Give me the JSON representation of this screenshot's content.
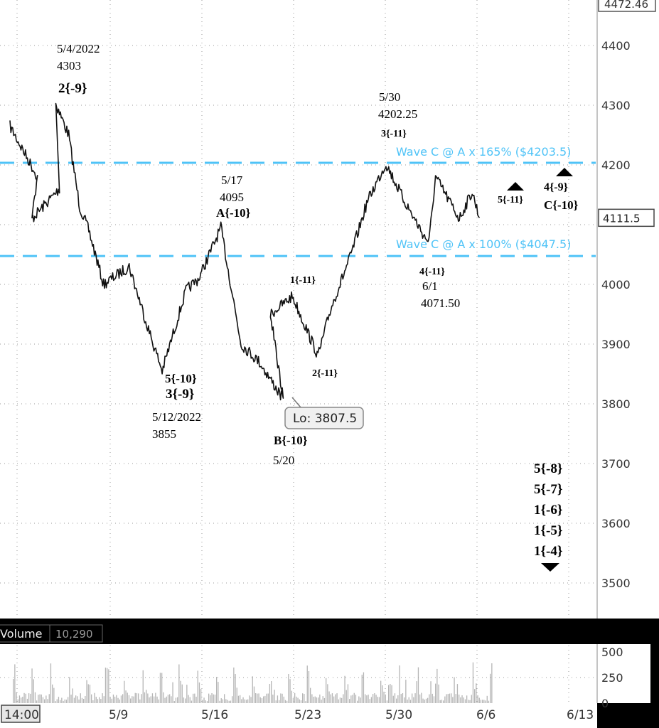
{
  "chart_data": {
    "type": "line",
    "title": "",
    "price_axis": {
      "ticks": [
        3500,
        3600,
        3700,
        3800,
        3900,
        4000,
        4100,
        4200,
        4300,
        4400
      ],
      "tick_labels": [
        "3500",
        "3600",
        "3700",
        "3800",
        "3900",
        "4000",
        "4100",
        "4200",
        "4300",
        "4400"
      ],
      "top_label": "4472.46",
      "last_price": 4111.5,
      "last_price_label": "4111.5",
      "ylim": [
        3450,
        4472.46
      ],
      "grid": "dotted"
    },
    "x_axis": {
      "tick_labels": [
        "14:00",
        "5/9",
        "5/16",
        "5/23",
        "5/30",
        "6/6",
        "6/13"
      ]
    },
    "horizontal_lines": [
      {
        "label": "Wave C @ A x 165% ($4203.5)",
        "value": 4203.5,
        "color": "#4fc3f7"
      },
      {
        "label": "Wave C @ A x 100% ($4047.5)",
        "value": 4047.5,
        "color": "#4fc3f7"
      }
    ],
    "price_series": {
      "name": "",
      "anchors": [
        {
          "x": "5/2",
          "y": 4265
        },
        {
          "x": "5/3",
          "y": 4180
        },
        {
          "x": "5/3",
          "y": 4110
        },
        {
          "x": "5/4",
          "y": 4160
        },
        {
          "x": "5/4",
          "y": 4303
        },
        {
          "x": "5/5",
          "y": 4250
        },
        {
          "x": "5/5",
          "y": 4130
        },
        {
          "x": "5/6",
          "y": 4090
        },
        {
          "x": "5/9",
          "y": 4000
        },
        {
          "x": "5/10",
          "y": 4030
        },
        {
          "x": "5/11",
          "y": 3920
        },
        {
          "x": "5/12",
          "y": 3855
        },
        {
          "x": "5/13",
          "y": 3990
        },
        {
          "x": "5/16",
          "y": 4010
        },
        {
          "x": "5/17",
          "y": 4095
        },
        {
          "x": "5/18",
          "y": 3900
        },
        {
          "x": "5/19",
          "y": 3870
        },
        {
          "x": "5/20",
          "y": 3807.5
        },
        {
          "x": "5/20",
          "y": 3950
        },
        {
          "x": "5/23",
          "y": 3980
        },
        {
          "x": "5/24",
          "y": 3880
        },
        {
          "x": "5/25",
          "y": 3960
        },
        {
          "x": "5/26",
          "y": 4050
        },
        {
          "x": "5/27",
          "y": 4140
        },
        {
          "x": "5/30",
          "y": 4202.25
        },
        {
          "x": "5/31",
          "y": 4140
        },
        {
          "x": "6/1",
          "y": 4080
        },
        {
          "x": "6/1",
          "y": 4071.5
        },
        {
          "x": "6/2",
          "y": 4180
        },
        {
          "x": "6/3",
          "y": 4110
        },
        {
          "x": "6/6",
          "y": 4155
        },
        {
          "x": "6/6",
          "y": 4111.5
        }
      ]
    },
    "annotations": [
      {
        "lines": [
          "5/4/2022",
          "4303"
        ],
        "wave": "2{-9}"
      },
      {
        "lines": [
          "5/12/2022",
          "3855"
        ],
        "wave": "5{-10}",
        "wave2": "3{-9}"
      },
      {
        "lines": [
          "5/17",
          "4095"
        ],
        "wave": "A{-10}"
      },
      {
        "lines": [
          "5/20"
        ],
        "wave": "B{-10}",
        "callout": "Lo: 3807.5"
      },
      {
        "lines": [
          "5/30",
          "4202.25"
        ],
        "wave": "3{-11}"
      },
      {
        "lines": [
          "6/1",
          "4071.50"
        ],
        "wave": "4{-11}"
      },
      {
        "wave": "1{-11}"
      },
      {
        "wave": "2{-11}"
      },
      {
        "wave": "5{-11}"
      },
      {
        "wave": "4{-9}",
        "wave2": "C{-10}"
      },
      {
        "stack": [
          "5{-8}",
          "5{-7}",
          "1{-6}",
          "1{-5}",
          "1{-4}"
        ]
      }
    ],
    "volume": {
      "label": "Volume",
      "value_label": "10,290",
      "ticks": [
        0,
        250,
        500
      ],
      "tick_labels": [
        "0",
        "250",
        "500"
      ],
      "ylim": [
        0,
        560
      ]
    },
    "colors": {
      "background": "#ffffff",
      "price_line": "#111111",
      "wave_lines": "#4fc3f7",
      "volume_bars": "#b5b5b5",
      "panel_bar": "#000000"
    }
  }
}
